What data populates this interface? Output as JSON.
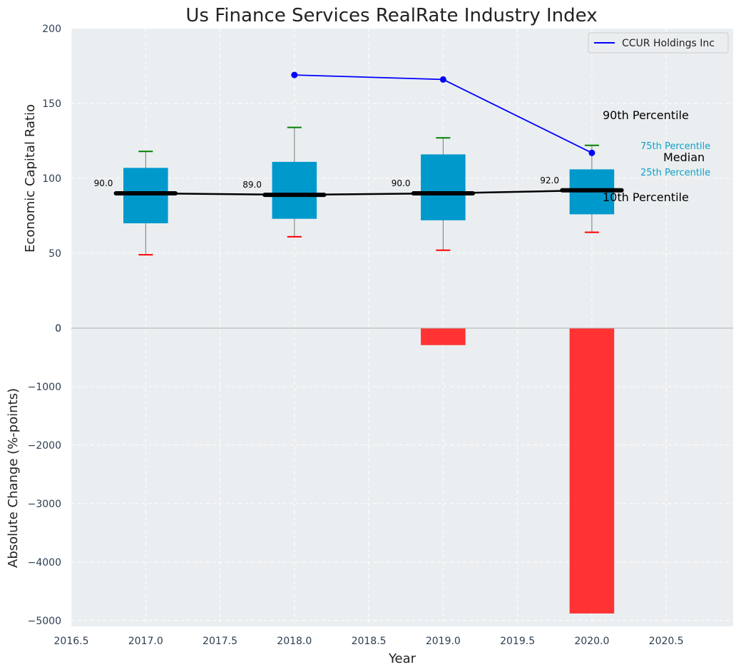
{
  "chart_data": [
    {
      "type": "box",
      "title": "Us Finance Services RealRate Industry Index",
      "ylabel": "Economic Capital Ratio",
      "ylim": [
        0,
        200
      ],
      "yticks": [
        0,
        50,
        100,
        150,
        200
      ],
      "grid": true,
      "boxes": [
        {
          "x": 2017,
          "p10": 49,
          "p25": 70,
          "median": 90,
          "p75": 107,
          "p90": 118,
          "median_label": "90.0"
        },
        {
          "x": 2018,
          "p10": 61,
          "p25": 73,
          "median": 89,
          "p75": 111,
          "p90": 134,
          "median_label": "89.0"
        },
        {
          "x": 2019,
          "p10": 52,
          "p25": 72,
          "median": 90,
          "p75": 116,
          "p90": 127,
          "median_label": "90.0"
        },
        {
          "x": 2020,
          "p10": 64,
          "p25": 76,
          "median": 92,
          "p75": 106,
          "p90": 122,
          "median_label": "92.0"
        }
      ],
      "series": [
        {
          "name": "CCUR Holdings Inc",
          "color": "#0000ff",
          "x": [
            2018,
            2019,
            2020
          ],
          "y": [
            169,
            166,
            117
          ]
        }
      ],
      "legend": {
        "position": "top-right",
        "entries": [
          "CCUR Holdings Inc"
        ]
      },
      "annotations": {
        "p90": "90th Percentile",
        "p75": "75th Percentile",
        "median": "Median",
        "p25": "25th Percentile",
        "p10": "10th Percentile"
      }
    },
    {
      "type": "bar",
      "xlabel": "Year",
      "ylabel": "Absolute Change (%-points)",
      "ylim": [
        -5100,
        0
      ],
      "yticks": [
        0,
        -1000,
        -2000,
        -3000,
        -4000,
        -5000
      ],
      "xlim": [
        2016.5,
        2020.95
      ],
      "xticks": [
        "2016.5",
        "2017.0",
        "2017.5",
        "2018.0",
        "2018.5",
        "2019.0",
        "2019.5",
        "2020.0",
        "2020.5"
      ],
      "x": [
        2019,
        2020
      ],
      "values": [
        -290,
        -4880
      ],
      "grid": true
    }
  ],
  "colors": {
    "box": "#0099cc",
    "median": "#000000",
    "p90_whisker": "#008000",
    "p10_whisker": "#ff0000",
    "company_line": "#0000ff",
    "bar": "#ff3333",
    "plot_bg": "#eaeef0"
  }
}
